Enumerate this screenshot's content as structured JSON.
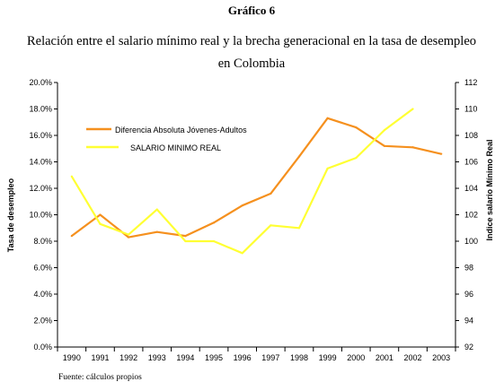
{
  "figure_label": "Gráfico 6",
  "title_line1": "Relación entre el salario mínimo real y la brecha generacional en la tasa de desempleo",
  "title_line2": "en Colombia",
  "source_note": "Fuente: cálculos propios",
  "colors": {
    "series_orange": "#f5901e",
    "series_yellow": "#ffff33",
    "axis": "#000000",
    "text": "#000000"
  },
  "chart_data": {
    "type": "line",
    "x": [
      "1990",
      "1991",
      "1992",
      "1993",
      "1994",
      "1995",
      "1996",
      "1997",
      "1998",
      "1999",
      "2000",
      "2001",
      "2002",
      "2003"
    ],
    "ylabel_left": "Tasa de desempleo",
    "ylabel_right": "Indice salario Mínimo Real",
    "ylim_left": [
      0,
      20
    ],
    "ylim_right": [
      92,
      112
    ],
    "y_ticks_left": [
      "0.0%",
      "2.0%",
      "4.0%",
      "6.0%",
      "8.0%",
      "10.0%",
      "12.0%",
      "14.0%",
      "16.0%",
      "18.0%",
      "20.0%"
    ],
    "y_ticks_right": [
      "92",
      "94",
      "96",
      "98",
      "100",
      "102",
      "104",
      "106",
      "108",
      "110",
      "112"
    ],
    "grid": false,
    "legend_position": "top-left",
    "series": [
      {
        "name": "Diferencia Absoluta Jóvenes-Adultos",
        "axis": "left",
        "color": "#f5901e",
        "values": [
          8.4,
          10.0,
          8.3,
          8.7,
          8.4,
          9.4,
          10.7,
          11.6,
          14.4,
          17.3,
          16.6,
          15.2,
          15.1,
          14.6
        ]
      },
      {
        "name": "SALARIO MINIMO REAL",
        "axis": "right",
        "color": "#ffff33",
        "values": [
          104.9,
          101.3,
          100.5,
          102.4,
          100.0,
          100.0,
          99.1,
          101.2,
          101.0,
          105.5,
          106.3,
          108.4,
          110.0,
          null
        ]
      }
    ]
  }
}
